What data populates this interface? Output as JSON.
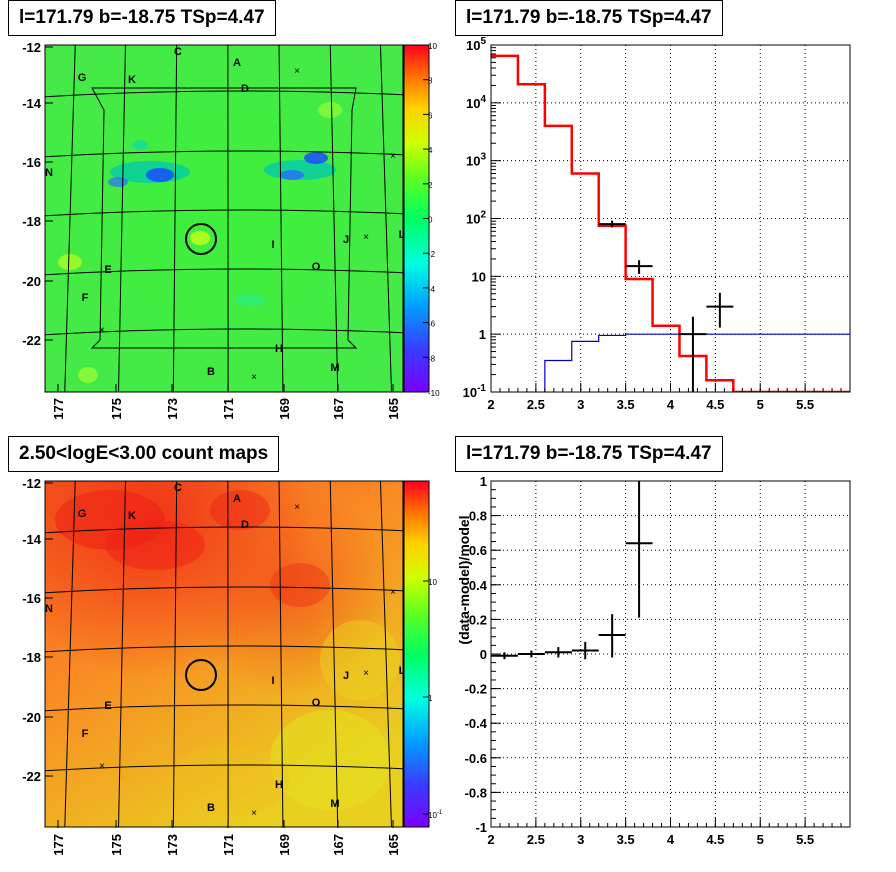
{
  "panels": {
    "tl_title": "l=171.79 b=-18.75 TSp=4.47",
    "tr_title": "l=171.79 b=-18.75 TSp=4.47",
    "bl_title": "2.50<logE<3.00 count maps",
    "br_title": "l=171.79 b=-18.75 TSp=4.47"
  },
  "source_labels": [
    "A",
    "B",
    "C",
    "D",
    "E",
    "F",
    "G",
    "H",
    "I",
    "J",
    "K",
    "L",
    "M",
    "N",
    "O"
  ],
  "colors": {
    "data": "#000000",
    "model": "#ff0000",
    "component": "#0000cc"
  },
  "chart_data": [
    {
      "type": "heatmap",
      "panel": "top-left",
      "title": "l=171.79 b=-18.75 TSp=4.47",
      "x_ticks": [
        "177",
        "175",
        "173",
        "171",
        "169",
        "167",
        "165"
      ],
      "y_ticks": [
        "-12",
        "-14",
        "-16",
        "-18",
        "-20",
        "-22"
      ],
      "colorbar_ticks": [
        "10",
        "8",
        "6",
        "4",
        "2",
        "0",
        "-2",
        "-4",
        "-6",
        "-8",
        "-10"
      ],
      "zlim": [
        -10,
        10
      ],
      "markers": [
        "A",
        "B",
        "C",
        "D",
        "E",
        "F",
        "G",
        "H",
        "I",
        "J",
        "K",
        "L",
        "M",
        "N",
        "O"
      ]
    },
    {
      "type": "line",
      "panel": "top-right",
      "title": "l=171.79 b=-18.75 TSp=4.47",
      "log_y": true,
      "grid": true,
      "xlim": [
        2,
        6
      ],
      "ylim": [
        0.1,
        100000
      ],
      "x_ticks": [
        "2",
        "2.5",
        "3",
        "3.5",
        "4",
        "4.5",
        "5",
        "5.5"
      ],
      "y_ticks": [
        "10^-1",
        "1",
        "10",
        "10^2",
        "10^3",
        "10^4",
        "10^5"
      ],
      "series": [
        {
          "role": "model",
          "style": "step",
          "edges": [
            2,
            2.3,
            2.6,
            2.9,
            3.2,
            3.5,
            3.8,
            4.1,
            4.4,
            4.7,
            5,
            5.3,
            5.6,
            6
          ],
          "values": [
            65000,
            21000,
            4000,
            600,
            75,
            9,
            1.4,
            0.42,
            0.16,
            0.1,
            0.1,
            0.1,
            0.1
          ]
        },
        {
          "role": "component",
          "style": "step",
          "edges": [
            2.6,
            2.9,
            3.2,
            3.5,
            3.8,
            4.1,
            4.4,
            4.7,
            5,
            5.3,
            5.6,
            6
          ],
          "values": [
            0.35,
            0.75,
            0.95,
            1,
            1,
            1,
            1,
            1,
            1,
            1,
            1
          ]
        },
        {
          "role": "data",
          "style": "errorbar",
          "x": [
            3.35,
            3.65,
            4.25,
            4.55
          ],
          "y": [
            80,
            15,
            1,
            3
          ],
          "xerr": [
            0.15,
            0.15,
            0.15,
            0.15
          ],
          "ylo": [
            70,
            11,
            0.1,
            1.3
          ],
          "yhi": [
            92,
            19,
            2,
            5.2
          ]
        }
      ]
    },
    {
      "type": "heatmap",
      "panel": "bottom-left",
      "title": "2.50<logE<3.00 count maps",
      "x_ticks": [
        "177",
        "175",
        "173",
        "171",
        "169",
        "167",
        "165"
      ],
      "y_ticks": [
        "-12",
        "-14",
        "-16",
        "-18",
        "-20",
        "-22"
      ],
      "colorbar_ticks": [
        "10",
        "1",
        "10^-1"
      ],
      "log_z": true,
      "markers": [
        "A",
        "B",
        "C",
        "D",
        "E",
        "F",
        "G",
        "H",
        "I",
        "J",
        "K",
        "L",
        "M",
        "N",
        "O"
      ]
    },
    {
      "type": "scatter",
      "panel": "bottom-right",
      "title": "l=171.79 b=-18.75 TSp=4.47",
      "ylabel": "(data-model)/model",
      "grid": true,
      "xlim": [
        2,
        6
      ],
      "ylim": [
        -1,
        1
      ],
      "x_ticks": [
        "2",
        "2.5",
        "3",
        "3.5",
        "4",
        "4.5",
        "5",
        "5.5"
      ],
      "y_ticks": [
        "-1",
        "-0.8",
        "-0.6",
        "-0.4",
        "-0.2",
        "0",
        "0.2",
        "0.4",
        "0.6",
        "0.8",
        "1"
      ],
      "points": [
        {
          "x": 2.15,
          "y": -0.01,
          "xerr": 0.15,
          "ylo": -0.03,
          "yhi": 0.01
        },
        {
          "x": 2.45,
          "y": 0.0,
          "xerr": 0.15,
          "ylo": -0.02,
          "yhi": 0.02
        },
        {
          "x": 2.75,
          "y": 0.01,
          "xerr": 0.15,
          "ylo": -0.02,
          "yhi": 0.04
        },
        {
          "x": 3.05,
          "y": 0.02,
          "xerr": 0.15,
          "ylo": -0.03,
          "yhi": 0.07
        },
        {
          "x": 3.35,
          "y": 0.11,
          "xerr": 0.15,
          "ylo": -0.02,
          "yhi": 0.23
        },
        {
          "x": 3.65,
          "y": 0.64,
          "xerr": 0.15,
          "ylo": 0.21,
          "yhi": 1.07
        }
      ]
    }
  ]
}
